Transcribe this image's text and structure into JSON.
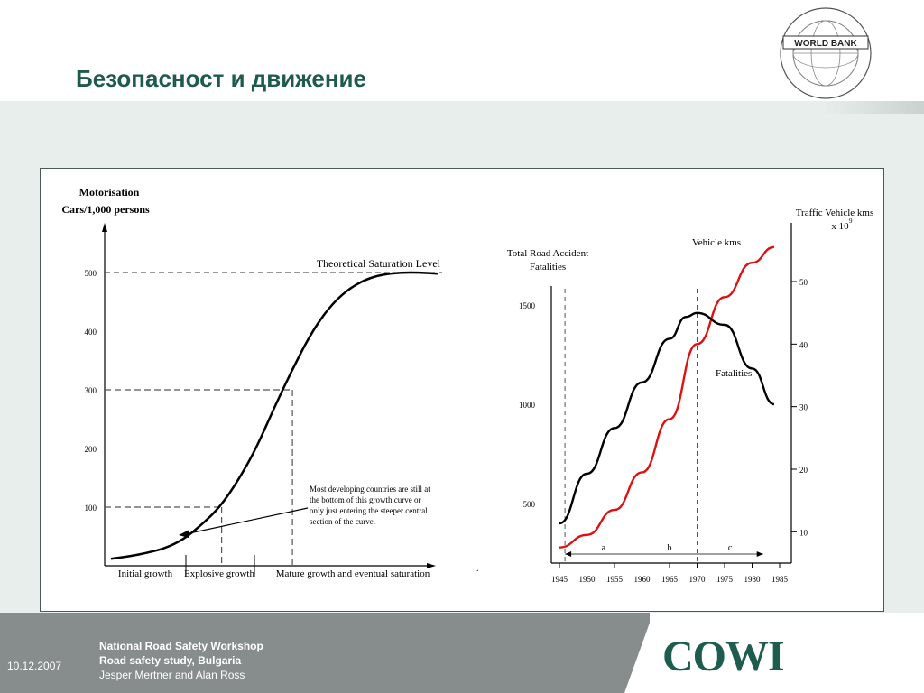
{
  "slide": {
    "title": "Безопасност и движение",
    "logo_text": "WORLD BANK",
    "logo_ring_text": "INTERNATIONAL BANK FOR RECONSTRUCTION AND DEVELOPMENT"
  },
  "footer": {
    "date": "10.12.2007",
    "line1": "National Road Safety Workshop",
    "line2": "Road safety study, Bulgaria",
    "line3": "Jesper Mertner and Alan Ross",
    "brand": "COWI"
  },
  "chart_data": [
    {
      "type": "line",
      "title": "",
      "ylabel_line1": "Motorisation",
      "ylabel_line2": "Cars/1,000 persons",
      "yticks": [
        100,
        200,
        300,
        400,
        500
      ],
      "ylim": [
        0,
        600
      ],
      "saturation_label": "Theoretical Saturation Level",
      "saturation_value": 500,
      "phases": [
        "Initial growth",
        "Explosive growth",
        "Mature growth and eventual saturation"
      ],
      "annotation": [
        "Most developing countries are still at",
        "the bottom of this growth curve or",
        "only just entering the steeper central",
        "section of the curve."
      ],
      "series": [
        {
          "values": [
            [
              0,
              12
            ],
            [
              0.5,
              16
            ],
            [
              1,
              22
            ],
            [
              1.5,
              30
            ],
            [
              2,
              45
            ],
            [
              2.5,
              70
            ],
            [
              3,
              100
            ],
            [
              3.5,
              145
            ],
            [
              4,
              200
            ],
            [
              4.5,
              270
            ],
            [
              5,
              335
            ],
            [
              5.5,
              395
            ],
            [
              6,
              440
            ],
            [
              6.5,
              470
            ],
            [
              7,
              488
            ],
            [
              7.5,
              497
            ],
            [
              8,
              500
            ],
            [
              8.5,
              500
            ],
            [
              9,
              498
            ]
          ]
        }
      ],
      "markers": [
        {
          "x": 2.8,
          "y": 100
        },
        {
          "x": 5.0,
          "y": 300
        }
      ]
    },
    {
      "type": "line",
      "ylabel_left_line1": "Total Road Accident",
      "ylabel_left_line2": "Fatalities",
      "ylabel_right_line1": "Traffic Vehicle kms",
      "ylabel_right_line2": "x 10",
      "ylabel_right_sup": "9",
      "yticks_left": [
        500,
        1000,
        1500
      ],
      "yticks_right": [
        10,
        20,
        30,
        40,
        50
      ],
      "xticks": [
        "1945",
        "1950",
        "1955",
        "1960",
        "1965",
        "1970",
        "1975",
        "1980",
        "1985"
      ],
      "periods": [
        "a",
        "b",
        "c"
      ],
      "period_bounds": [
        1946,
        1960,
        1970,
        1982
      ],
      "series": [
        {
          "name": "Vehicle kms",
          "color": "#e01010",
          "axis": "right",
          "points": [
            [
              1945,
              7.5
            ],
            [
              1950,
              9.5
            ],
            [
              1955,
              13.5
            ],
            [
              1960,
              19.5
            ],
            [
              1965,
              28
            ],
            [
              1970,
              40
            ],
            [
              1975,
              47.5
            ],
            [
              1980,
              53
            ],
            [
              1984,
              55.5
            ]
          ]
        },
        {
          "name": "Fatalities",
          "color": "#000000",
          "axis": "left",
          "points": [
            [
              1945,
              400
            ],
            [
              1950,
              650
            ],
            [
              1955,
              880
            ],
            [
              1960,
              1110
            ],
            [
              1965,
              1330
            ],
            [
              1968,
              1440
            ],
            [
              1970,
              1460
            ],
            [
              1975,
              1400
            ],
            [
              1980,
              1180
            ],
            [
              1984,
              1000
            ]
          ]
        }
      ]
    }
  ]
}
